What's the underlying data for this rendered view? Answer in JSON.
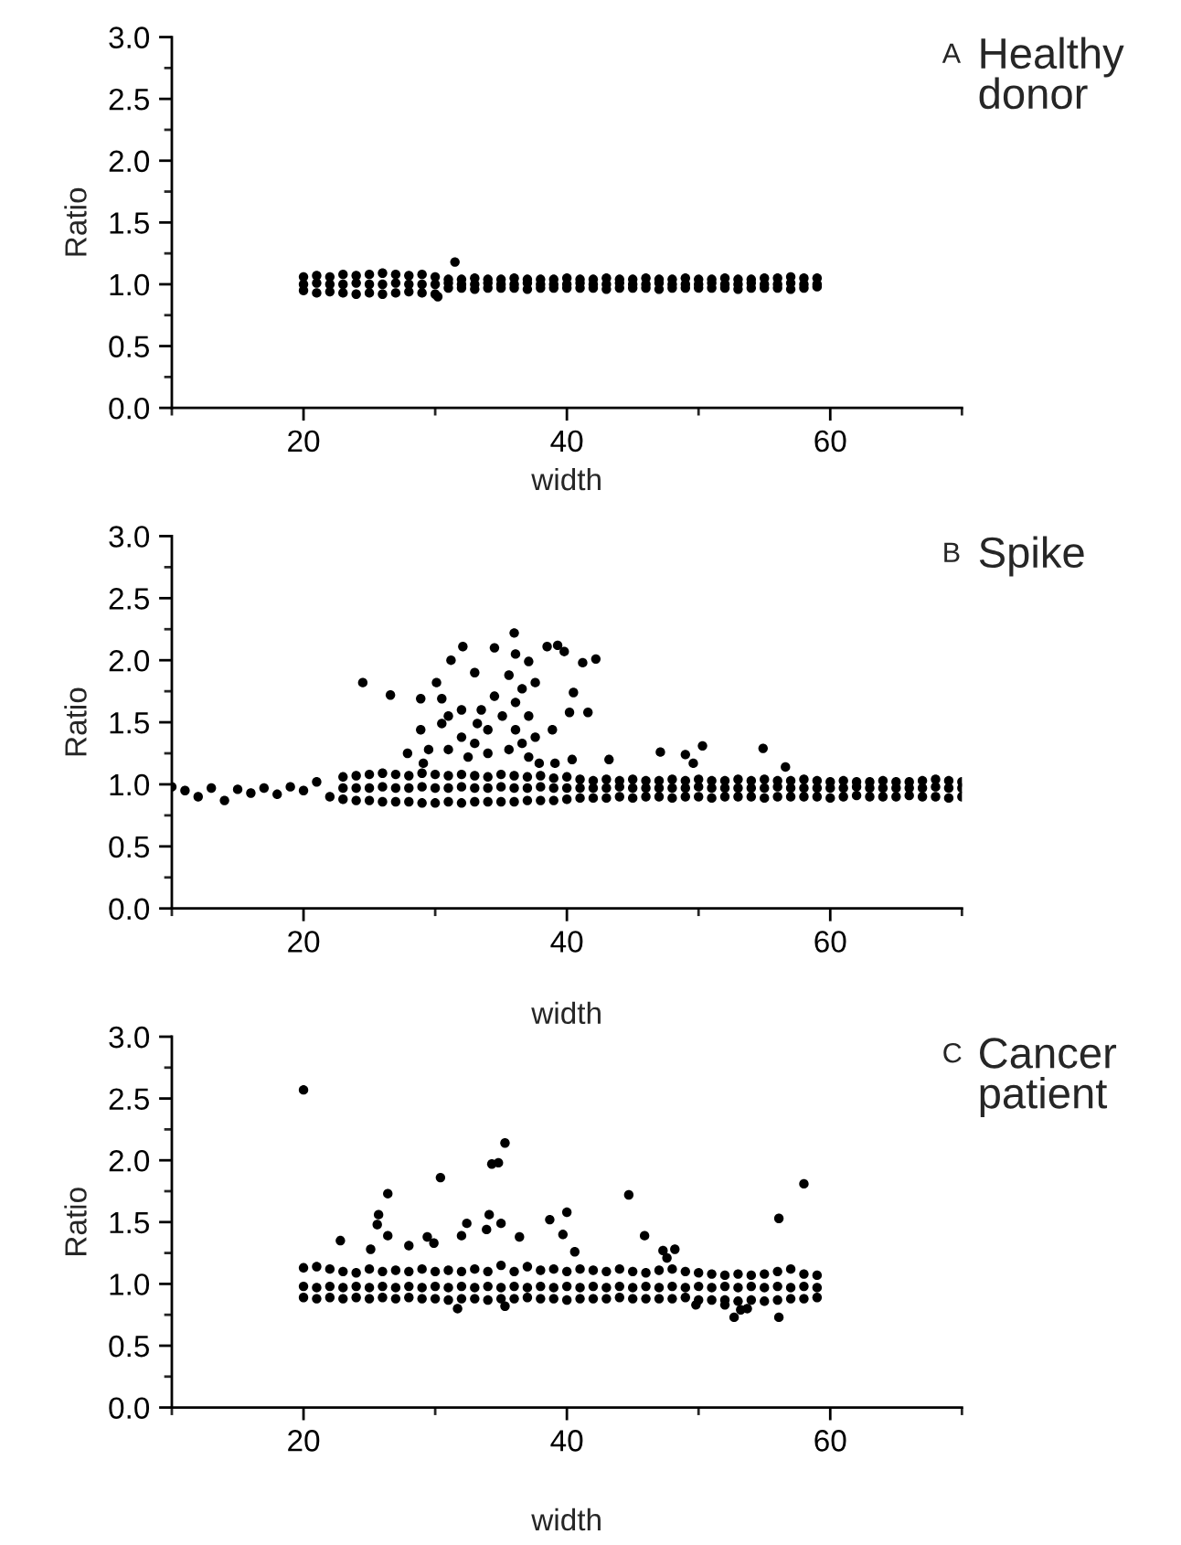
{
  "chart_data": [
    {
      "type": "scatter",
      "title": "A",
      "subtitle": "Healthy\ndonor",
      "xlabel": "width",
      "ylabel": "Ratio",
      "xlim": [
        10,
        70
      ],
      "xticks": [
        20,
        40,
        60
      ],
      "ylim": [
        0,
        3
      ],
      "yticks": [
        {
          "value": 0,
          "label": "0.0"
        },
        {
          "value": 0.5,
          "label": "0.5"
        },
        {
          "value": 1,
          "label": "1.0"
        },
        {
          "value": 1.5,
          "label": "1.5"
        },
        {
          "value": 2,
          "label": "2.0"
        },
        {
          "value": 2.5,
          "label": "2.5"
        },
        {
          "value": 3,
          "label": "3.0"
        }
      ],
      "grid": false,
      "legend": false,
      "marker": "circle",
      "series": [
        {
          "color": "#000000",
          "x": [
            20,
            21,
            22,
            23,
            24,
            25,
            26,
            27,
            28,
            29,
            30,
            31,
            32,
            33,
            34,
            35,
            36,
            37,
            38,
            39,
            40,
            41,
            42,
            43,
            44,
            45,
            46,
            47,
            48,
            49,
            50,
            51,
            52,
            53,
            54,
            55,
            56,
            57,
            58,
            59,
            20,
            21,
            22,
            23,
            24,
            25,
            26,
            27,
            28,
            29,
            30,
            31,
            32,
            33,
            34,
            35,
            36,
            37,
            38,
            39,
            40,
            41,
            42,
            43,
            44,
            45,
            46,
            47,
            48,
            49,
            50,
            51,
            52,
            53,
            54,
            55,
            56,
            57,
            58,
            59,
            20,
            21,
            22,
            23,
            24,
            25,
            26,
            27,
            28,
            29,
            30,
            31,
            32,
            33,
            34,
            35,
            36,
            37,
            38,
            39,
            40,
            41,
            42,
            43,
            44,
            45,
            46,
            47,
            48,
            49,
            50,
            51,
            52,
            53,
            54,
            55,
            56,
            57,
            58,
            59,
            31.5,
            30.2
          ],
          "values": [
            1.06,
            1.07,
            1.06,
            1.08,
            1.07,
            1.08,
            1.09,
            1.08,
            1.07,
            1.08,
            1.06,
            1.04,
            1.04,
            1.05,
            1.04,
            1.04,
            1.05,
            1.04,
            1.04,
            1.04,
            1.05,
            1.04,
            1.04,
            1.05,
            1.04,
            1.04,
            1.05,
            1.04,
            1.04,
            1.05,
            1.04,
            1.04,
            1.05,
            1.04,
            1.04,
            1.05,
            1.05,
            1.06,
            1.05,
            1.05,
            1.0,
            1.01,
            1.0,
            1.0,
            1.01,
            1.0,
            1.0,
            1.01,
            1.0,
            1.0,
            1.0,
            1.01,
            1.0,
            1.0,
            1.01,
            1.0,
            1.0,
            1.01,
            1.0,
            1.0,
            1.0,
            1.01,
            1.0,
            1.0,
            1.01,
            1.0,
            1.0,
            1.01,
            1.0,
            1.0,
            1.0,
            1.01,
            1.0,
            1.0,
            1.01,
            1.0,
            1.0,
            1.01,
            1.0,
            1.0,
            0.95,
            0.93,
            0.94,
            0.93,
            0.92,
            0.93,
            0.92,
            0.93,
            0.94,
            0.93,
            0.92,
            0.97,
            0.97,
            0.96,
            0.97,
            0.97,
            0.97,
            0.96,
            0.97,
            0.97,
            0.97,
            0.97,
            0.97,
            0.96,
            0.97,
            0.97,
            0.97,
            0.96,
            0.97,
            0.97,
            0.97,
            0.97,
            0.97,
            0.96,
            0.97,
            0.97,
            0.97,
            0.96,
            0.97,
            0.98,
            1.18,
            0.9
          ]
        }
      ]
    },
    {
      "type": "scatter",
      "title": "B",
      "subtitle": "Spike",
      "xlabel": "width",
      "ylabel": "Ratio",
      "xlim": [
        10,
        70
      ],
      "xticks": [
        20,
        40,
        60
      ],
      "ylim": [
        0,
        3
      ],
      "yticks": [
        {
          "value": 0,
          "label": "0.0"
        },
        {
          "value": 0.5,
          "label": "0.5"
        },
        {
          "value": 1,
          "label": "1.0"
        },
        {
          "value": 1.5,
          "label": "1.5"
        },
        {
          "value": 2,
          "label": "2.0"
        },
        {
          "value": 2.5,
          "label": "2.5"
        },
        {
          "value": 3,
          "label": "3.0"
        }
      ],
      "grid": false,
      "legend": false,
      "marker": "circle",
      "series": [
        {
          "color": "#000000",
          "x": [
            10,
            11,
            12,
            13,
            14,
            15,
            16,
            17,
            18,
            19,
            20,
            21,
            22,
            23,
            24,
            25,
            26,
            27,
            28,
            29,
            30,
            31,
            32,
            33,
            34,
            35,
            36,
            37,
            38,
            39,
            40,
            41,
            42,
            43,
            44,
            45,
            46,
            47,
            48,
            49,
            50,
            51,
            52,
            53,
            54,
            55,
            56,
            57,
            58,
            59,
            60,
            61,
            62,
            63,
            64,
            65,
            66,
            67,
            68,
            69,
            70,
            23,
            24,
            25,
            26,
            27,
            28,
            29,
            30,
            31,
            32,
            33,
            34,
            35,
            36,
            37,
            38,
            39,
            40,
            41,
            42,
            43,
            44,
            45,
            46,
            47,
            48,
            49,
            50,
            51,
            52,
            53,
            54,
            55,
            56,
            57,
            58,
            59,
            60,
            61,
            62,
            63,
            64,
            65,
            66,
            67,
            68,
            69,
            70,
            23,
            24,
            25,
            26,
            27,
            28,
            29,
            30,
            31,
            32,
            33,
            34,
            35,
            36,
            37,
            38,
            39,
            40,
            41,
            42,
            43,
            44,
            45,
            46,
            47,
            48,
            49,
            50,
            51,
            52,
            53,
            54,
            55,
            56,
            57,
            58,
            59,
            60,
            61,
            62,
            63,
            64,
            65,
            66,
            67,
            68,
            69,
            70,
            24.5,
            26.6,
            28.9,
            30.5,
            30.1,
            32.1,
            31.2,
            33.0,
            34.5,
            36.0,
            36.1,
            37.1,
            38.5,
            39.3,
            39.8,
            41.2,
            42.2,
            40.5,
            41.6,
            40.2,
            38.9,
            37.1,
            36.6,
            35.6,
            37.6,
            36.1,
            35.1,
            34.0,
            33.0,
            32.0,
            31.0,
            28.9,
            29.5,
            31.0,
            32.5,
            34.0,
            35.6,
            36.6,
            37.1,
            33.5,
            32.0,
            30.5,
            27.9,
            29.1,
            37.9,
            39.1,
            40.4,
            43.2,
            47.1,
            49.0,
            50.3,
            54.9,
            56.6,
            49.6,
            34.5,
            33.2,
            36.1,
            37.6
          ],
          "values": [
            0.98,
            0.95,
            0.9,
            0.97,
            0.87,
            0.96,
            0.93,
            0.97,
            0.92,
            0.98,
            0.95,
            1.02,
            0.9,
            1.06,
            1.07,
            1.08,
            1.09,
            1.08,
            1.07,
            1.09,
            1.08,
            1.07,
            1.08,
            1.07,
            1.06,
            1.08,
            1.07,
            1.06,
            1.07,
            1.05,
            1.06,
            1.04,
            1.03,
            1.04,
            1.03,
            1.04,
            1.03,
            1.03,
            1.04,
            1.03,
            1.04,
            1.03,
            1.03,
            1.04,
            1.03,
            1.04,
            1.03,
            1.03,
            1.04,
            1.03,
            1.02,
            1.03,
            1.02,
            1.02,
            1.03,
            1.02,
            1.02,
            1.03,
            1.04,
            1.03,
            1.02,
            0.97,
            0.97,
            0.97,
            0.98,
            0.97,
            0.97,
            0.98,
            0.97,
            0.97,
            0.98,
            0.97,
            0.97,
            0.98,
            0.97,
            0.97,
            0.98,
            0.97,
            0.97,
            0.97,
            0.97,
            0.97,
            0.98,
            0.97,
            0.97,
            0.97,
            0.97,
            0.97,
            0.98,
            0.97,
            0.97,
            0.97,
            0.97,
            0.97,
            0.98,
            0.97,
            0.97,
            0.97,
            0.97,
            0.97,
            0.98,
            0.97,
            0.97,
            0.97,
            0.97,
            0.97,
            0.98,
            0.97,
            0.97,
            0.88,
            0.87,
            0.87,
            0.86,
            0.86,
            0.86,
            0.85,
            0.85,
            0.86,
            0.85,
            0.86,
            0.86,
            0.86,
            0.86,
            0.87,
            0.87,
            0.87,
            0.88,
            0.89,
            0.89,
            0.89,
            0.9,
            0.89,
            0.9,
            0.9,
            0.89,
            0.9,
            0.9,
            0.89,
            0.9,
            0.9,
            0.9,
            0.89,
            0.9,
            0.9,
            0.9,
            0.9,
            0.89,
            0.9,
            0.91,
            0.9,
            0.9,
            0.9,
            0.91,
            0.9,
            0.9,
            0.89,
            0.9,
            1.82,
            1.72,
            1.69,
            1.69,
            1.82,
            2.11,
            2.0,
            1.9,
            2.1,
            2.22,
            2.05,
            1.99,
            2.11,
            2.12,
            2.07,
            1.98,
            2.01,
            1.74,
            1.58,
            1.58,
            1.44,
            1.55,
            1.77,
            1.88,
            1.82,
            1.66,
            1.55,
            1.44,
            1.33,
            1.38,
            1.55,
            1.44,
            1.28,
            1.28,
            1.22,
            1.25,
            1.28,
            1.33,
            1.22,
            1.6,
            1.6,
            1.49,
            1.25,
            1.17,
            1.17,
            1.17,
            1.2,
            1.2,
            1.26,
            1.24,
            1.31,
            1.29,
            1.14,
            1.17,
            1.71,
            1.49,
            1.44,
            1.38
          ]
        }
      ]
    },
    {
      "type": "scatter",
      "title": "C",
      "subtitle": "Cancer\npatient",
      "xlabel": "width",
      "ylabel": "Ratio",
      "xlim": [
        10,
        70
      ],
      "xticks": [
        20,
        40,
        60
      ],
      "ylim": [
        0,
        3
      ],
      "yticks": [
        {
          "value": 0,
          "label": "0.0"
        },
        {
          "value": 0.5,
          "label": "0.5"
        },
        {
          "value": 1,
          "label": "1.0"
        },
        {
          "value": 1.5,
          "label": "1.5"
        },
        {
          "value": 2,
          "label": "2.0"
        },
        {
          "value": 2.5,
          "label": "2.5"
        },
        {
          "value": 3,
          "label": "3.0"
        }
      ],
      "grid": false,
      "legend": false,
      "marker": "circle",
      "series": [
        {
          "color": "#000000",
          "x": [
            20,
            21,
            22,
            23,
            24,
            25,
            26,
            27,
            28,
            29,
            30,
            31,
            32,
            33,
            34,
            35,
            36,
            37,
            38,
            39,
            40,
            41,
            42,
            43,
            44,
            45,
            46,
            47,
            48,
            49,
            50,
            51,
            52,
            53,
            54,
            55,
            56,
            57,
            58,
            59,
            20,
            21,
            22,
            23,
            24,
            25,
            26,
            27,
            28,
            29,
            30,
            31,
            32,
            33,
            34,
            35,
            36,
            37,
            38,
            39,
            40,
            41,
            42,
            43,
            44,
            45,
            46,
            47,
            48,
            49,
            50,
            51,
            52,
            53,
            54,
            55,
            56,
            57,
            58,
            59,
            20,
            21,
            22,
            23,
            24,
            25,
            26,
            27,
            28,
            29,
            30,
            31,
            32,
            33,
            34,
            35,
            36,
            37,
            38,
            39,
            40,
            41,
            42,
            43,
            44,
            45,
            46,
            47,
            48,
            49,
            50,
            51,
            52,
            53,
            54,
            55,
            56,
            57,
            58,
            59,
            20.0,
            26.4,
            25.7,
            25.6,
            26.4,
            22.8,
            25.1,
            30.4,
            29.4,
            29.9,
            32.4,
            32.0,
            34.1,
            33.9,
            34.3,
            34.8,
            35.3,
            35.0,
            36.4,
            38.7,
            40.0,
            39.7,
            40.6,
            44.7,
            45.9,
            47.3,
            48.2,
            47.6,
            56.1,
            58.0,
            28.0,
            31.7,
            35.3,
            49.8,
            52.7,
            53.2,
            53.7,
            56.1,
            52.0
          ],
          "values": [
            1.13,
            1.14,
            1.12,
            1.1,
            1.09,
            1.12,
            1.1,
            1.11,
            1.1,
            1.12,
            1.1,
            1.11,
            1.1,
            1.12,
            1.1,
            1.15,
            1.1,
            1.14,
            1.11,
            1.12,
            1.1,
            1.12,
            1.11,
            1.1,
            1.12,
            1.1,
            1.09,
            1.11,
            1.12,
            1.1,
            1.09,
            1.08,
            1.07,
            1.08,
            1.07,
            1.08,
            1.1,
            1.12,
            1.08,
            1.07,
            0.98,
            0.97,
            0.98,
            0.97,
            0.98,
            0.97,
            0.98,
            0.97,
            0.98,
            0.97,
            0.98,
            0.97,
            0.98,
            0.97,
            0.98,
            0.97,
            0.98,
            0.97,
            0.98,
            0.97,
            0.98,
            0.97,
            0.98,
            0.97,
            0.98,
            0.97,
            0.98,
            0.97,
            0.98,
            0.97,
            0.98,
            0.97,
            0.98,
            0.97,
            0.98,
            0.97,
            0.98,
            0.97,
            0.98,
            0.97,
            0.89,
            0.88,
            0.89,
            0.88,
            0.89,
            0.88,
            0.89,
            0.88,
            0.89,
            0.88,
            0.88,
            0.87,
            0.88,
            0.88,
            0.87,
            0.88,
            0.88,
            0.89,
            0.88,
            0.88,
            0.87,
            0.88,
            0.88,
            0.88,
            0.89,
            0.88,
            0.88,
            0.88,
            0.88,
            0.89,
            0.87,
            0.87,
            0.87,
            0.86,
            0.87,
            0.86,
            0.87,
            0.88,
            0.88,
            0.89,
            2.57,
            1.73,
            1.56,
            1.48,
            1.39,
            1.35,
            1.28,
            1.86,
            1.38,
            1.33,
            1.49,
            1.39,
            1.56,
            1.44,
            1.97,
            1.98,
            2.14,
            1.49,
            1.38,
            1.52,
            1.58,
            1.4,
            1.26,
            1.72,
            1.39,
            1.27,
            1.28,
            1.21,
            1.53,
            1.81,
            1.31,
            0.8,
            0.82,
            0.83,
            0.73,
            0.79,
            0.8,
            0.73,
            0.83
          ]
        }
      ]
    }
  ]
}
